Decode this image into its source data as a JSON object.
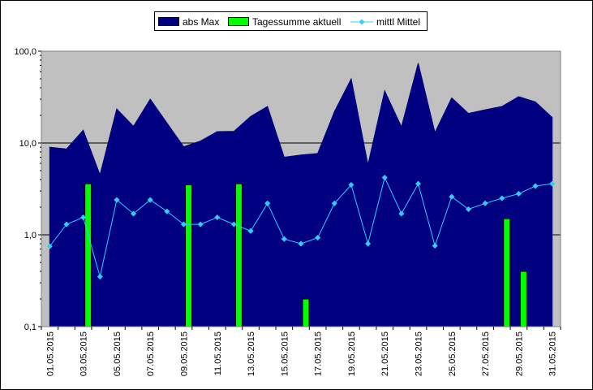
{
  "chart_data": {
    "type": "area",
    "title": "",
    "xlabel": "",
    "ylabel": "",
    "y_scale": "log",
    "ylim": [
      0.1,
      100
    ],
    "y_ticks": [
      "0,1",
      "1,0",
      "10,0",
      "100,0"
    ],
    "y_tick_values": [
      0.1,
      1,
      10,
      100
    ],
    "x": [
      "01.05.2015",
      "02.05.2015",
      "03.05.2015",
      "04.05.2015",
      "05.05.2015",
      "06.05.2015",
      "07.05.2015",
      "08.05.2015",
      "09.05.2015",
      "10.05.2015",
      "11.05.2015",
      "12.05.2015",
      "13.05.2015",
      "14.05.2015",
      "15.05.2015",
      "16.05.2015",
      "17.05.2015",
      "18.05.2015",
      "19.05.2015",
      "20.05.2015",
      "21.05.2015",
      "22.05.2015",
      "23.05.2015",
      "24.05.2015",
      "25.05.2015",
      "26.05.2015",
      "27.05.2015",
      "28.05.2015",
      "29.05.2015",
      "30.05.2015",
      "31.05.2015"
    ],
    "x_tick_labels": [
      "01.05.2015",
      "03.05.2015",
      "05.05.2015",
      "07.05.2015",
      "09.05.2015",
      "11.05.2015",
      "13.05.2015",
      "15.05.2015",
      "17.05.2015",
      "19.05.2015",
      "21.05.2015",
      "23.05.2015",
      "25.05.2015",
      "27.05.2015",
      "29.05.2015",
      "31.05.2015"
    ],
    "grid": "horizontal major lines",
    "legend_position": "top-center",
    "plot_background": "#c0c0c0",
    "series": [
      {
        "name": "abs Max",
        "type": "area",
        "color": "#000080",
        "values": [
          9.0,
          8.6,
          13.8,
          4.5,
          23.5,
          15.2,
          30.0,
          16.5,
          9.1,
          10.5,
          13.3,
          13.4,
          19.5,
          25.0,
          7.0,
          7.4,
          7.7,
          22.0,
          50.0,
          5.8,
          37.0,
          15.0,
          74.0,
          13.0,
          31.0,
          21.0,
          23.0,
          25.0,
          32.0,
          28.0,
          19.0
        ]
      },
      {
        "name": "Tagessumme aktuell",
        "type": "bar",
        "color": "#00ff00",
        "values": [
          null,
          null,
          3.6,
          null,
          null,
          null,
          null,
          null,
          3.5,
          null,
          null,
          3.6,
          null,
          null,
          null,
          0.2,
          null,
          null,
          null,
          null,
          null,
          null,
          null,
          null,
          null,
          null,
          null,
          1.5,
          0.4,
          null,
          null
        ]
      },
      {
        "name": "mittl Mittel",
        "type": "line",
        "color": "#33ccff",
        "values": [
          0.75,
          1.3,
          1.55,
          0.35,
          2.4,
          1.7,
          2.4,
          1.8,
          1.3,
          1.3,
          1.55,
          1.3,
          1.1,
          2.2,
          0.9,
          0.8,
          0.93,
          2.2,
          3.5,
          0.8,
          4.2,
          1.7,
          3.6,
          0.76,
          2.6,
          1.9,
          2.2,
          2.5,
          2.8,
          3.4,
          3.6
        ]
      }
    ]
  }
}
